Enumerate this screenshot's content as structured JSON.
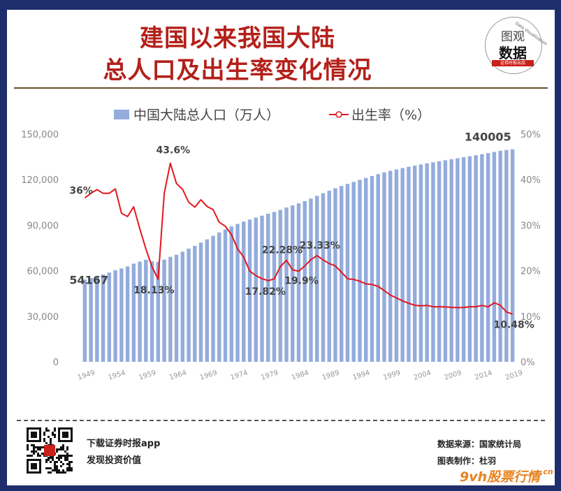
{
  "title_line1": "建国以来我国大陆",
  "title_line2": "总人口及出生率变化情况",
  "logo": {
    "line1": "图观",
    "line2": "数据",
    "bar": "证券时报出品",
    "arc": "Data Visualization"
  },
  "chart_data": {
    "type": "bar+line",
    "legend": [
      {
        "name": "中国大陆总人口（万人）",
        "marker": "bar",
        "color": "#93acdc"
      },
      {
        "name": "出生率（%）",
        "marker": "line",
        "color": "#e4161e"
      }
    ],
    "legend_placement": "top",
    "grid": false,
    "x_start": 1949,
    "x_end": 2019,
    "x_ticks": [
      "1949",
      "1954",
      "1959",
      "1964",
      "1969",
      "1974",
      "1979",
      "1984",
      "1989",
      "1994",
      "1999",
      "2004",
      "2009",
      "2014",
      "2019"
    ],
    "y_left": {
      "min": 0,
      "max": 150000,
      "ticks": [
        "0",
        "30,000",
        "60,000",
        "90,000",
        "120,000",
        "150,000"
      ]
    },
    "y_right": {
      "min": 0,
      "max": 50,
      "ticks": [
        "0%",
        "10%",
        "20%",
        "30%",
        "40%",
        "50%"
      ]
    },
    "population": [
      54167,
      55196,
      56300,
      57482,
      58796,
      60266,
      61465,
      62828,
      64653,
      65994,
      67207,
      66207,
      65859,
      67295,
      69172,
      70499,
      72538,
      74542,
      76368,
      78534,
      80671,
      82992,
      85229,
      87177,
      89211,
      90859,
      92420,
      93717,
      94974,
      96259,
      97542,
      98705,
      100072,
      101654,
      103008,
      104357,
      105851,
      107507,
      109300,
      111026,
      112704,
      114333,
      115823,
      117171,
      118517,
      119850,
      121121,
      122389,
      123626,
      124761,
      125786,
      126743,
      127627,
      128453,
      129227,
      129988,
      130756,
      131448,
      132129,
      132802,
      133450,
      134091,
      134735,
      135404,
      136072,
      136782,
      137462,
      138271,
      139008,
      139538,
      140005
    ],
    "birth_rate": [
      36.0,
      37.0,
      37.8,
      37.0,
      37.0,
      37.97,
      32.6,
      31.9,
      34.03,
      29.22,
      24.78,
      20.86,
      18.13,
      37.01,
      43.6,
      39.14,
      37.88,
      35.05,
      33.96,
      35.59,
      34.11,
      33.43,
      30.65,
      29.77,
      27.93,
      24.82,
      23.01,
      19.91,
      18.93,
      18.25,
      17.82,
      18.21,
      20.91,
      22.28,
      20.19,
      19.9,
      21.04,
      22.43,
      23.33,
      22.37,
      21.58,
      21.06,
      19.68,
      18.24,
      18.09,
      17.7,
      17.12,
      16.98,
      16.57,
      15.64,
      14.64,
      14.03,
      13.38,
      12.86,
      12.41,
      12.29,
      12.4,
      12.09,
      12.1,
      12.06,
      11.95,
      11.9,
      11.93,
      12.1,
      12.08,
      12.37,
      12.07,
      12.95,
      12.43,
      10.94,
      10.48
    ],
    "annotations": [
      {
        "text": "54167",
        "series": "population",
        "year": 1949
      },
      {
        "text": "140005",
        "series": "population",
        "year": 2019
      },
      {
        "text": "36%",
        "series": "birth_rate",
        "year": 1949
      },
      {
        "text": "43.6%",
        "series": "birth_rate",
        "year": 1963
      },
      {
        "text": "18.13%",
        "series": "birth_rate",
        "year": 1961
      },
      {
        "text": "22.28%",
        "series": "birth_rate",
        "year": 1982
      },
      {
        "text": "17.82%",
        "series": "birth_rate",
        "year": 1979
      },
      {
        "text": "19.9%",
        "series": "birth_rate",
        "year": 1984
      },
      {
        "text": "23.33%",
        "series": "birth_rate",
        "year": 1987
      },
      {
        "text": "10.48%",
        "series": "birth_rate",
        "year": 2019
      }
    ]
  },
  "footer": {
    "left_line1": "下载证券时报app",
    "left_line2": "发现投资价值",
    "right_line1": "数据来源：国家统计局",
    "right_line2": "图表制作：杜羽"
  },
  "watermark": {
    "main": "9vh股票行情",
    "sub": ".cn"
  }
}
